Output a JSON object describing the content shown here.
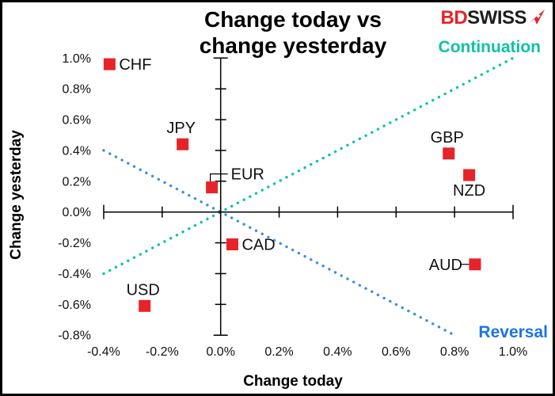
{
  "header": {
    "title_line1": "Change today vs",
    "title_line2": "change yesterday",
    "logo": {
      "part1": "BD",
      "part2": "SWISS"
    }
  },
  "colors": {
    "marker_red": "#e62328",
    "continuation_teal": "#0fc2a2",
    "reversal_blue": "#3a8ee6",
    "reversal_text_blue": "#1b74e6",
    "axis_black": "#000000"
  },
  "chart_data": {
    "type": "scatter",
    "title": "Change today vs change yesterday",
    "xlabel": "Change today",
    "ylabel": "Change yesterday",
    "xlim": [
      -0.4,
      1.0
    ],
    "ylim": [
      -0.8,
      1.0
    ],
    "grid": false,
    "x_tick_values": [
      -0.4,
      -0.2,
      0.0,
      0.2,
      0.4,
      0.6,
      0.8,
      1.0
    ],
    "x_tick_labels": [
      "-0.4%",
      "-0.2%",
      "0.0%",
      "0.2%",
      "0.4%",
      "0.6%",
      "0.8%",
      "1.0%"
    ],
    "y_tick_values": [
      1.0,
      0.8,
      0.6,
      0.4,
      0.2,
      0.0,
      -0.2,
      -0.4,
      -0.6,
      -0.8
    ],
    "y_tick_labels": [
      "1.0%",
      "0.8%",
      "0.6%",
      "0.4%",
      "0.2%",
      "0.0%",
      "-0.2%",
      "-0.4%",
      "-0.6%",
      "-0.8%"
    ],
    "points": [
      {
        "label": "CHF",
        "x": -0.38,
        "y": 0.96,
        "label_pos": "right"
      },
      {
        "label": "JPY",
        "x": -0.13,
        "y": 0.44,
        "label_pos": "above"
      },
      {
        "label": "EUR",
        "x": -0.03,
        "y": 0.16,
        "label_pos": "right-elbow"
      },
      {
        "label": "GBP",
        "x": 0.78,
        "y": 0.38,
        "label_pos": "above"
      },
      {
        "label": "NZD",
        "x": 0.85,
        "y": 0.24,
        "label_pos": "below"
      },
      {
        "label": "CAD",
        "x": 0.04,
        "y": -0.21,
        "label_pos": "right"
      },
      {
        "label": "AUD",
        "x": 0.87,
        "y": -0.34,
        "label_pos": "left-dash"
      },
      {
        "label": "USD",
        "x": -0.26,
        "y": -0.61,
        "label_pos": "above"
      }
    ],
    "lines": [
      {
        "name": "continuation",
        "label": "Continuation",
        "from": [
          -0.4,
          -0.4
        ],
        "to": [
          1.0,
          1.0
        ],
        "style": "dotted"
      },
      {
        "name": "reversal",
        "label": "Reversal",
        "from": [
          -0.4,
          0.4
        ],
        "to": [
          0.8,
          -0.8
        ],
        "style": "dotted"
      }
    ]
  }
}
